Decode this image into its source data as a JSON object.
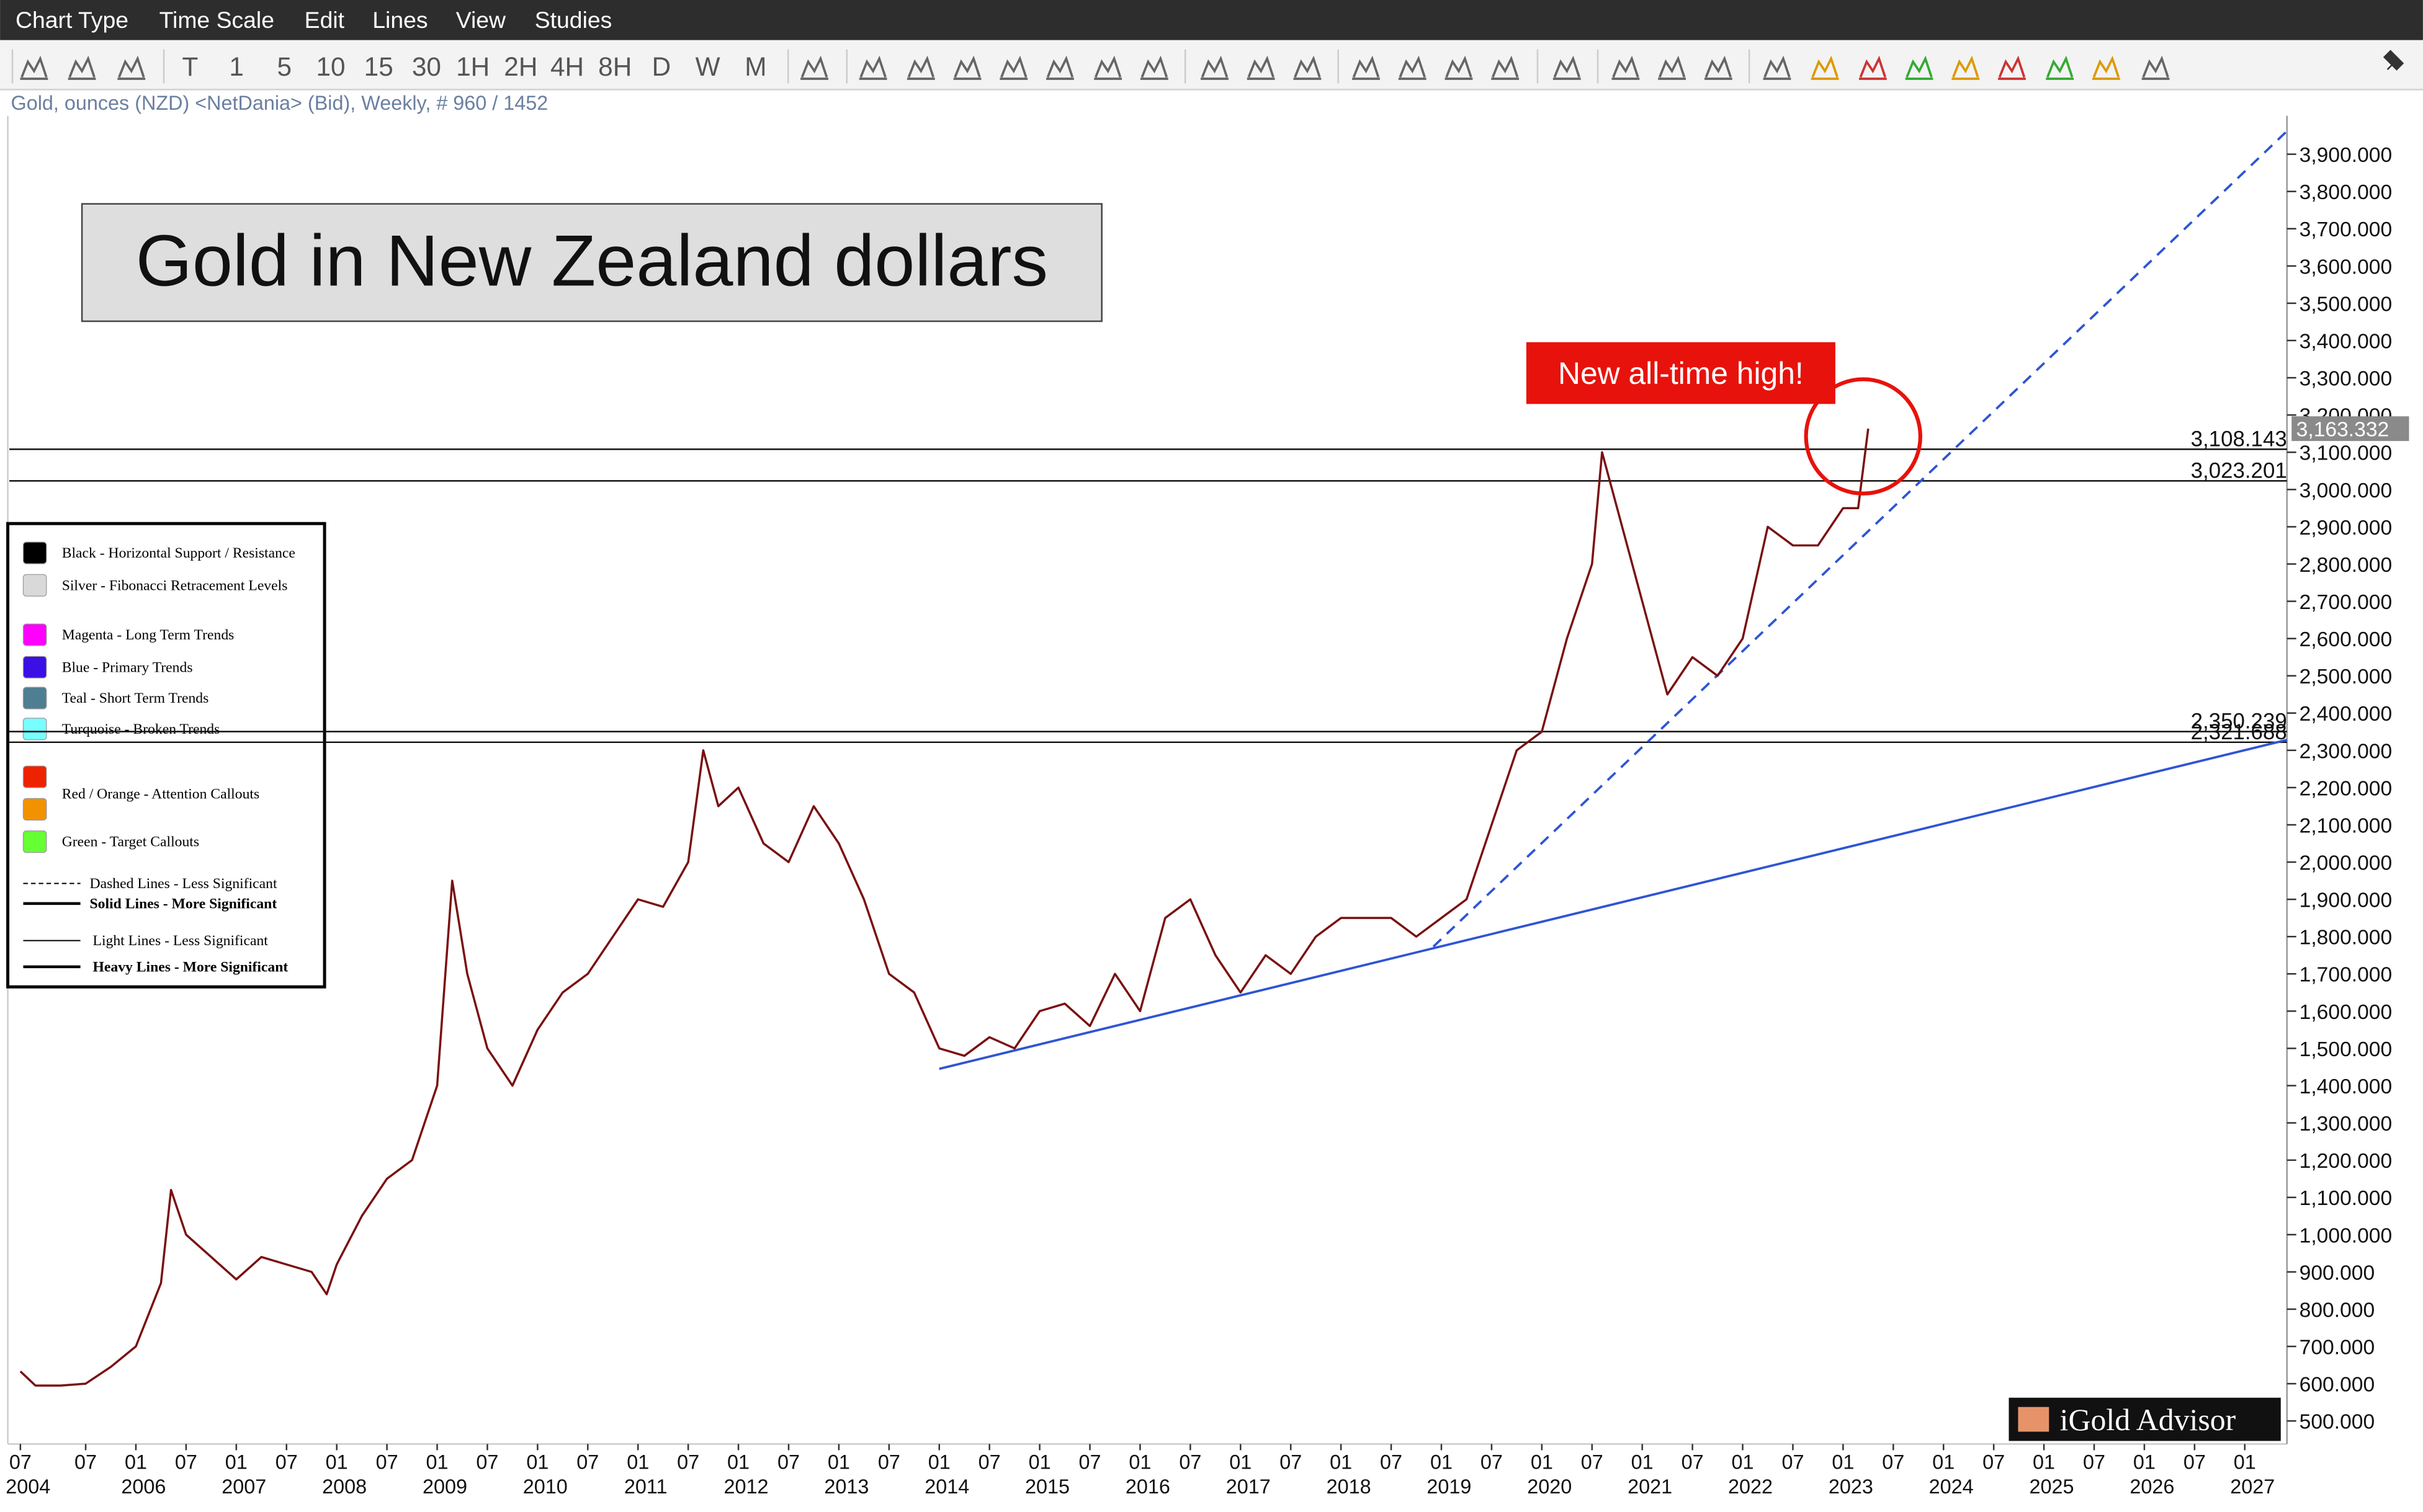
{
  "menu": [
    "Chart Type",
    "Time Scale",
    "Edit",
    "Lines",
    "View",
    "Studies"
  ],
  "toolbar": [
    "T",
    "1",
    "5",
    "10",
    "15",
    "30",
    "1H",
    "2H",
    "4H",
    "8H",
    "D",
    "W",
    "M"
  ],
  "chart_data": {
    "type": "line",
    "title": "Gold in New Zealand dollars",
    "subtitle": "Gold, ounces (NZD) <NetDania> (Bid), Weekly, # 960 / 1452",
    "x": [
      2004.85,
      2005.0,
      2005.25,
      2005.5,
      2005.75,
      2006.0,
      2006.25,
      2006.35,
      2006.5,
      2006.75,
      2007.0,
      2007.25,
      2007.5,
      2007.75,
      2007.9,
      2008.0,
      2008.25,
      2008.5,
      2008.75,
      2009.0,
      2009.15,
      2009.3,
      2009.5,
      2009.75,
      2010.0,
      2010.25,
      2010.5,
      2010.75,
      2011.0,
      2011.25,
      2011.5,
      2011.65,
      2011.8,
      2012.0,
      2012.25,
      2012.5,
      2012.75,
      2013.0,
      2013.25,
      2013.5,
      2013.75,
      2014.0,
      2014.25,
      2014.5,
      2014.75,
      2015.0,
      2015.25,
      2015.5,
      2015.75,
      2016.0,
      2016.25,
      2016.5,
      2016.75,
      2017.0,
      2017.25,
      2017.5,
      2017.75,
      2018.0,
      2018.25,
      2018.5,
      2018.75,
      2019.0,
      2019.25,
      2019.5,
      2019.75,
      2020.0,
      2020.25,
      2020.5,
      2020.6,
      2020.75,
      2021.0,
      2021.25,
      2021.5,
      2021.75,
      2022.0,
      2022.25,
      2022.5,
      2022.75,
      2023.0,
      2023.15,
      2023.25
    ],
    "series": [
      {
        "color": "#7a1010",
        "values": [
          633,
          595,
          595,
          600,
          645,
          700,
          870,
          1120,
          1000,
          940,
          880,
          940,
          920,
          900,
          840,
          920,
          1050,
          1150,
          1200,
          1400,
          1950,
          1700,
          1500,
          1400,
          1550,
          1650,
          1700,
          1800,
          1900,
          1880,
          2000,
          2300,
          2150,
          2200,
          2050,
          2000,
          2150,
          2050,
          1900,
          1700,
          1650,
          1500,
          1480,
          1530,
          1500,
          1600,
          1620,
          1560,
          1700,
          1600,
          1850,
          1900,
          1750,
          1650,
          1750,
          1700,
          1800,
          1850,
          1850,
          1850,
          1800,
          1850,
          1900,
          2100,
          2300,
          2350,
          2600,
          2800,
          3100,
          2950,
          2700,
          2450,
          2550,
          2500,
          2600,
          2900,
          2850,
          2850,
          2950,
          2950,
          3163.332
        ]
      }
    ],
    "xlim": [
      2004.74,
      2027.42
    ],
    "ylim": [
      438,
      4003
    ],
    "xticks": [
      {
        "value": 2004.85,
        "label": "07"
      },
      {
        "value": 2005.5,
        "label": "07"
      },
      {
        "value": 2006.0,
        "label": "01"
      },
      {
        "value": 2006.5,
        "label": "07"
      },
      {
        "value": 2007.0,
        "label": "01"
      },
      {
        "value": 2007.5,
        "label": "07"
      },
      {
        "value": 2008.0,
        "label": "01"
      },
      {
        "value": 2008.5,
        "label": "07"
      },
      {
        "value": 2009.0,
        "label": "01"
      },
      {
        "value": 2009.5,
        "label": "07"
      },
      {
        "value": 2010.0,
        "label": "01"
      },
      {
        "value": 2010.5,
        "label": "07"
      },
      {
        "value": 2011.0,
        "label": "01"
      },
      {
        "value": 2011.5,
        "label": "07"
      },
      {
        "value": 2012.0,
        "label": "01"
      },
      {
        "value": 2012.5,
        "label": "07"
      },
      {
        "value": 2013.0,
        "label": "01"
      },
      {
        "value": 2013.5,
        "label": "07"
      },
      {
        "value": 2014.0,
        "label": "01"
      },
      {
        "value": 2014.5,
        "label": "07"
      },
      {
        "value": 2015.0,
        "label": "01"
      },
      {
        "value": 2015.5,
        "label": "07"
      },
      {
        "value": 2016.0,
        "label": "01"
      },
      {
        "value": 2016.5,
        "label": "07"
      },
      {
        "value": 2017.0,
        "label": "01"
      },
      {
        "value": 2017.5,
        "label": "07"
      },
      {
        "value": 2018.0,
        "label": "01"
      },
      {
        "value": 2018.5,
        "label": "07"
      },
      {
        "value": 2019.0,
        "label": "01"
      },
      {
        "value": 2019.5,
        "label": "07"
      },
      {
        "value": 2020.0,
        "label": "01"
      },
      {
        "value": 2020.5,
        "label": "07"
      },
      {
        "value": 2021.0,
        "label": "01"
      },
      {
        "value": 2021.5,
        "label": "07"
      },
      {
        "value": 2022.0,
        "label": "01"
      },
      {
        "value": 2022.5,
        "label": "07"
      },
      {
        "value": 2023.0,
        "label": "01"
      },
      {
        "value": 2023.5,
        "label": "07"
      },
      {
        "value": 2024.0,
        "label": "01"
      },
      {
        "value": 2024.5,
        "label": "07"
      },
      {
        "value": 2025.0,
        "label": "01"
      },
      {
        "value": 2025.5,
        "label": "07"
      },
      {
        "value": 2026.0,
        "label": "01"
      },
      {
        "value": 2026.5,
        "label": "07"
      },
      {
        "value": 2027.0,
        "label": "01"
      }
    ],
    "xyears": [
      {
        "value": 2004.85,
        "label": "2004"
      },
      2006,
      2007,
      2008,
      2009,
      2010,
      2011,
      2012,
      2013,
      2014,
      2015,
      2016,
      2017,
      2018,
      2019,
      2020,
      2021,
      2022,
      2023,
      2024,
      2025,
      2026,
      2027
    ],
    "yticks": [
      {
        "value": 500,
        "label": "500.000"
      },
      {
        "value": 600,
        "label": "600.000"
      },
      {
        "value": 700,
        "label": "700.000"
      },
      {
        "value": 800,
        "label": "800.000"
      },
      {
        "value": 900,
        "label": "900.000"
      },
      {
        "value": 1000,
        "label": "1,000.000"
      },
      {
        "value": 1100,
        "label": "1,100.000"
      },
      {
        "value": 1200,
        "label": "1,200.000"
      },
      {
        "value": 1300,
        "label": "1,300.000"
      },
      {
        "value": 1400,
        "label": "1,400.000"
      },
      {
        "value": 1500,
        "label": "1,500.000"
      },
      {
        "value": 1600,
        "label": "1,600.000"
      },
      {
        "value": 1700,
        "label": "1,700.000"
      },
      {
        "value": 1800,
        "label": "1,800.000"
      },
      {
        "value": 1900,
        "label": "1,900.000"
      },
      {
        "value": 2000,
        "label": "2,000.000"
      },
      {
        "value": 2100,
        "label": "2,100.000"
      },
      {
        "value": 2200,
        "label": "2,200.000"
      },
      {
        "value": 2300,
        "label": "2,300.000"
      },
      {
        "value": 2400,
        "label": "2,400.000"
      },
      {
        "value": 2500,
        "label": "2,500.000"
      },
      {
        "value": 2600,
        "label": "2,600.000"
      },
      {
        "value": 2700,
        "label": "2,700.000"
      },
      {
        "value": 2800,
        "label": "2,800.000"
      },
      {
        "value": 2900,
        "label": "2,900.000"
      },
      {
        "value": 3000,
        "label": "3,000.000"
      },
      {
        "value": 3100,
        "label": "3,100.000"
      },
      {
        "value": 3200,
        "label": "3,200.000"
      },
      {
        "value": 3300,
        "label": "3,300.000"
      },
      {
        "value": 3400,
        "label": "3,400.000"
      },
      {
        "value": 3500,
        "label": "3,500.000"
      },
      {
        "value": 3600,
        "label": "3,600.000"
      },
      {
        "value": 3700,
        "label": "3,700.000"
      },
      {
        "value": 3800,
        "label": "3,800.000"
      },
      {
        "value": 3900,
        "label": "3,900.000"
      }
    ],
    "levels": [
      {
        "value": 3108.143,
        "label": "3,108.143"
      },
      {
        "value": 3023.201,
        "label": "3,023.201"
      },
      {
        "value": 2350.239,
        "label": "2,350.239"
      },
      {
        "value": 2321.688,
        "label": "2,321.688"
      }
    ],
    "last_price": {
      "value": 3163.332,
      "label": "3,163.332"
    },
    "trendlines": [
      {
        "x": [
          2014.0,
          2027.42
        ],
        "values": [
          1445,
          2328
        ],
        "color": "#2f55d4",
        "dashed": false
      },
      {
        "x": [
          2018.92,
          2027.42
        ],
        "values": [
          1773,
          3962
        ],
        "color": "#2f55d4",
        "dashed": true
      }
    ],
    "annotation": {
      "text": "New all-time high!",
      "x": 2023.2,
      "value": 3163.332,
      "color": "#e8120c"
    },
    "grid": false
  },
  "legend_box": {
    "swatches": [
      {
        "label": "Black - Horizontal Support / Resistance",
        "colors": [
          "#000000"
        ]
      },
      {
        "label": "Silver - Fibonacci Retracement Levels",
        "colors": [
          "#d9d9d9"
        ]
      },
      {
        "label": "Magenta - Long Term Trends",
        "colors": [
          "#ff00ff"
        ]
      },
      {
        "label": "Blue - Primary Trends",
        "colors": [
          "#3a10e5"
        ]
      },
      {
        "label": "Teal - Short Term Trends",
        "colors": [
          "#4f7e92"
        ]
      },
      {
        "label": "Turquoise - Broken Trends",
        "colors": [
          "#77ffff"
        ]
      },
      {
        "label": "Red / Orange - Attention Callouts",
        "colors": [
          "#ee2200",
          "#f39200"
        ]
      },
      {
        "label": "Green - Target Callouts",
        "colors": [
          "#66ff33"
        ]
      }
    ],
    "lines": [
      {
        "label": "Dashed Lines - Less Significant",
        "dashed": true,
        "bold": false
      },
      {
        "label": "Solid Lines - More Significant",
        "dashed": false,
        "bold": true
      },
      {
        "label": "Light Lines - Less Significant",
        "dashed": false,
        "bold": false
      },
      {
        "label": "Heavy Lines - More Significant",
        "dashed": false,
        "bold": true
      }
    ]
  },
  "branding": "iGold Advisor"
}
